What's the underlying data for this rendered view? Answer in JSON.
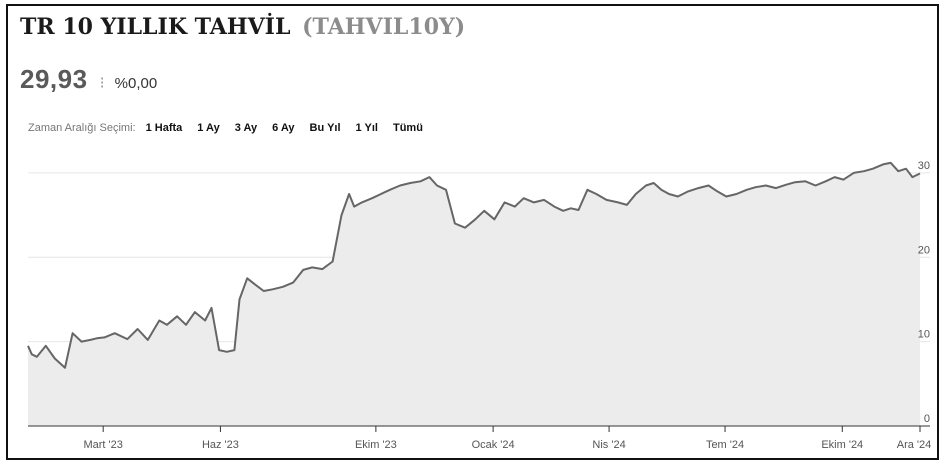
{
  "header": {
    "title": "TR 10 YILLIK TAHVİL",
    "code": "(TAHVIL10Y)"
  },
  "quote": {
    "price": "29,93",
    "separator": "⁝",
    "change": "%0,00"
  },
  "range_selector": {
    "label": "Zaman Aralığı Seçimi:",
    "options": [
      "1 Hafta",
      "1 Ay",
      "3 Ay",
      "6 Ay",
      "Bu Yıl",
      "1 Yıl",
      "Tümü"
    ]
  },
  "colors": {
    "line": "#666666",
    "area": "#ececec",
    "grid": "#e6e6e6",
    "axis": "#333333"
  },
  "chart_data": {
    "type": "area",
    "title": "",
    "xlabel": "",
    "ylabel": "",
    "ylim": [
      0,
      32
    ],
    "yticks": [
      0,
      10,
      20,
      30
    ],
    "xticks": [
      {
        "label": "Mart '23",
        "date": "2023-03-01"
      },
      {
        "label": "Haz '23",
        "date": "2023-06-01"
      },
      {
        "label": "Ekim '23",
        "date": "2023-10-01"
      },
      {
        "label": "Ocak '24",
        "date": "2024-01-01"
      },
      {
        "label": "Nis '24",
        "date": "2024-04-01"
      },
      {
        "label": "Tem '24",
        "date": "2024-07-01"
      },
      {
        "label": "Ekim '24",
        "date": "2024-10-01"
      },
      {
        "label": "Ara '24",
        "date": "2024-12-01"
      }
    ],
    "x_start": "2023-01-01",
    "x_end": "2024-12-01",
    "grid": true,
    "series": [
      {
        "x": [
          "2023-01-01",
          "2023-01-04",
          "2023-01-08",
          "2023-01-15",
          "2023-01-22",
          "2023-01-30",
          "2023-02-05",
          "2023-02-12",
          "2023-02-19",
          "2023-02-24",
          "2023-03-02",
          "2023-03-10",
          "2023-03-20",
          "2023-03-28",
          "2023-04-05",
          "2023-04-14",
          "2023-04-20",
          "2023-04-28",
          "2023-05-05",
          "2023-05-12",
          "2023-05-20",
          "2023-05-25",
          "2023-05-31",
          "2023-06-06",
          "2023-06-12",
          "2023-06-16",
          "2023-06-22",
          "2023-06-28",
          "2023-07-05",
          "2023-07-12",
          "2023-07-20",
          "2023-07-28",
          "2023-08-05",
          "2023-08-12",
          "2023-08-20",
          "2023-08-28",
          "2023-09-04",
          "2023-09-10",
          "2023-09-14",
          "2023-09-20",
          "2023-09-28",
          "2023-10-05",
          "2023-10-12",
          "2023-10-20",
          "2023-10-28",
          "2023-11-05",
          "2023-11-12",
          "2023-11-18",
          "2023-11-25",
          "2023-12-02",
          "2023-12-10",
          "2023-12-18",
          "2023-12-25",
          "2024-01-02",
          "2024-01-10",
          "2024-01-18",
          "2024-01-25",
          "2024-02-02",
          "2024-02-10",
          "2024-02-18",
          "2024-02-25",
          "2024-03-02",
          "2024-03-08",
          "2024-03-15",
          "2024-03-22",
          "2024-03-30",
          "2024-04-08",
          "2024-04-15",
          "2024-04-22",
          "2024-04-30",
          "2024-05-06",
          "2024-05-12",
          "2024-05-18",
          "2024-05-25",
          "2024-06-02",
          "2024-06-10",
          "2024-06-18",
          "2024-06-25",
          "2024-07-02",
          "2024-07-10",
          "2024-07-18",
          "2024-07-25",
          "2024-08-02",
          "2024-08-10",
          "2024-08-18",
          "2024-08-25",
          "2024-09-02",
          "2024-09-10",
          "2024-09-18",
          "2024-09-25",
          "2024-10-02",
          "2024-10-10",
          "2024-10-18",
          "2024-10-25",
          "2024-11-02",
          "2024-11-08",
          "2024-11-14",
          "2024-11-20",
          "2024-11-25",
          "2024-12-01"
        ],
        "y": [
          9.5,
          8.5,
          8.2,
          9.5,
          8.0,
          6.9,
          11.0,
          10.0,
          10.2,
          10.4,
          10.5,
          11.0,
          10.3,
          11.5,
          10.2,
          12.5,
          12.0,
          13.0,
          12.0,
          13.5,
          12.5,
          14.0,
          9.0,
          8.8,
          9.0,
          15.0,
          17.5,
          16.8,
          16.0,
          16.2,
          16.5,
          17.0,
          18.5,
          18.8,
          18.6,
          19.5,
          25.0,
          27.5,
          26.0,
          26.5,
          27.0,
          27.5,
          28.0,
          28.5,
          28.8,
          29.0,
          29.5,
          28.5,
          28.0,
          24.0,
          23.5,
          24.5,
          25.5,
          24.5,
          26.5,
          26.0,
          27.0,
          26.5,
          26.8,
          26.0,
          25.5,
          25.8,
          25.6,
          28.0,
          27.5,
          26.8,
          26.5,
          26.2,
          27.5,
          28.5,
          28.8,
          28.0,
          27.5,
          27.2,
          27.8,
          28.2,
          28.5,
          27.8,
          27.2,
          27.5,
          28.0,
          28.3,
          28.5,
          28.2,
          28.6,
          28.9,
          29.0,
          28.5,
          29.0,
          29.5,
          29.2,
          30.0,
          30.2,
          30.5,
          31.0,
          31.2,
          30.2,
          30.5,
          29.5,
          29.93
        ]
      }
    ]
  }
}
